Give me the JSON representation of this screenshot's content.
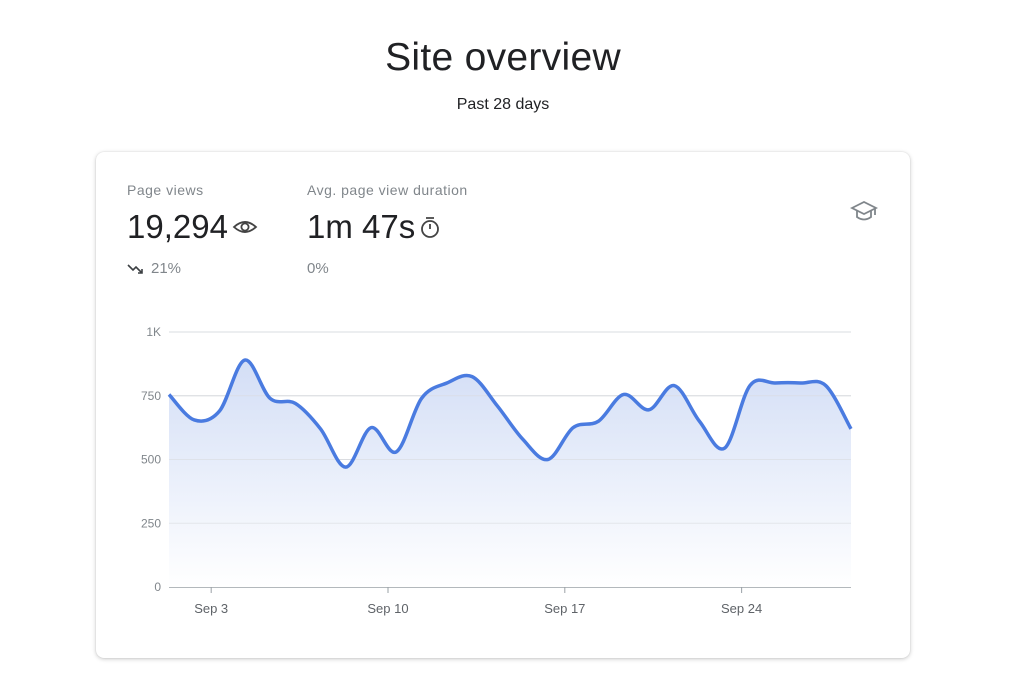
{
  "header": {
    "title": "Site overview",
    "subtitle": "Past 28 days"
  },
  "metrics": [
    {
      "label": "Page views",
      "value": "19,294",
      "icon": "eye-icon",
      "change": "21%",
      "change_icon": "trending-down-icon"
    },
    {
      "label": "Avg. page view duration",
      "value": "1m 47s",
      "icon": "timer-icon",
      "change": "0%"
    }
  ],
  "card_icon": "school-icon",
  "colors": {
    "line": "#4a7be0",
    "fill_top": "#d3def6",
    "grid": "#dadce0",
    "axis": "#9aa0a6"
  },
  "chart_data": {
    "type": "area",
    "title": "",
    "xlabel": "",
    "ylabel": "Page views",
    "ylim": [
      0,
      1000
    ],
    "y_ticks": [
      {
        "value": 0,
        "label": "0"
      },
      {
        "value": 250,
        "label": "250"
      },
      {
        "value": 500,
        "label": "500"
      },
      {
        "value": 750,
        "label": "750"
      },
      {
        "value": 1000,
        "label": "1K"
      }
    ],
    "x_ticks": [
      {
        "index": 1.67,
        "label": "Sep 3"
      },
      {
        "index": 8.67,
        "label": "Sep 10"
      },
      {
        "index": 15.67,
        "label": "Sep 17"
      },
      {
        "index": 22.67,
        "label": "Sep 24"
      }
    ],
    "grid": true,
    "series": [
      {
        "name": "Page views",
        "values": [
          755,
          655,
          690,
          890,
          740,
          720,
          620,
          470,
          625,
          530,
          740,
          800,
          825,
          710,
          580,
          500,
          625,
          650,
          755,
          695,
          790,
          650,
          545,
          790,
          800,
          800,
          790,
          620
        ]
      }
    ]
  }
}
